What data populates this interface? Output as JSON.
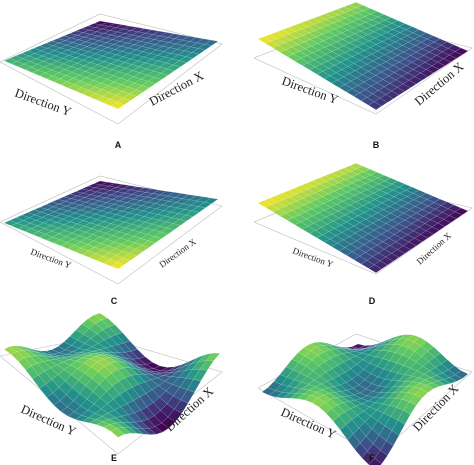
{
  "figure": {
    "panels": [
      {
        "letter": "A",
        "x_label": "Direction X",
        "y_label": "Direction Y",
        "surface": "tilted-plane"
      },
      {
        "letter": "B",
        "x_label": "Direction X",
        "y_label": "Direction Y",
        "surface": "tilted-plane"
      },
      {
        "letter": "C",
        "x_label": "Direction X",
        "y_label": "Direction Y",
        "surface": "tilted-plane"
      },
      {
        "letter": "D",
        "x_label": "Direction X",
        "y_label": "Direction Y",
        "surface": "tilted-plane"
      },
      {
        "letter": "E",
        "x_label": "Direction X",
        "y_label": "Direction Y",
        "surface": "undulating"
      },
      {
        "letter": "F",
        "x_label": "Direction X",
        "y_label": "Direction Y",
        "surface": "undulating"
      }
    ],
    "colormap": [
      "#440154",
      "#3b528b",
      "#21918c",
      "#5ec962",
      "#fde725"
    ]
  }
}
